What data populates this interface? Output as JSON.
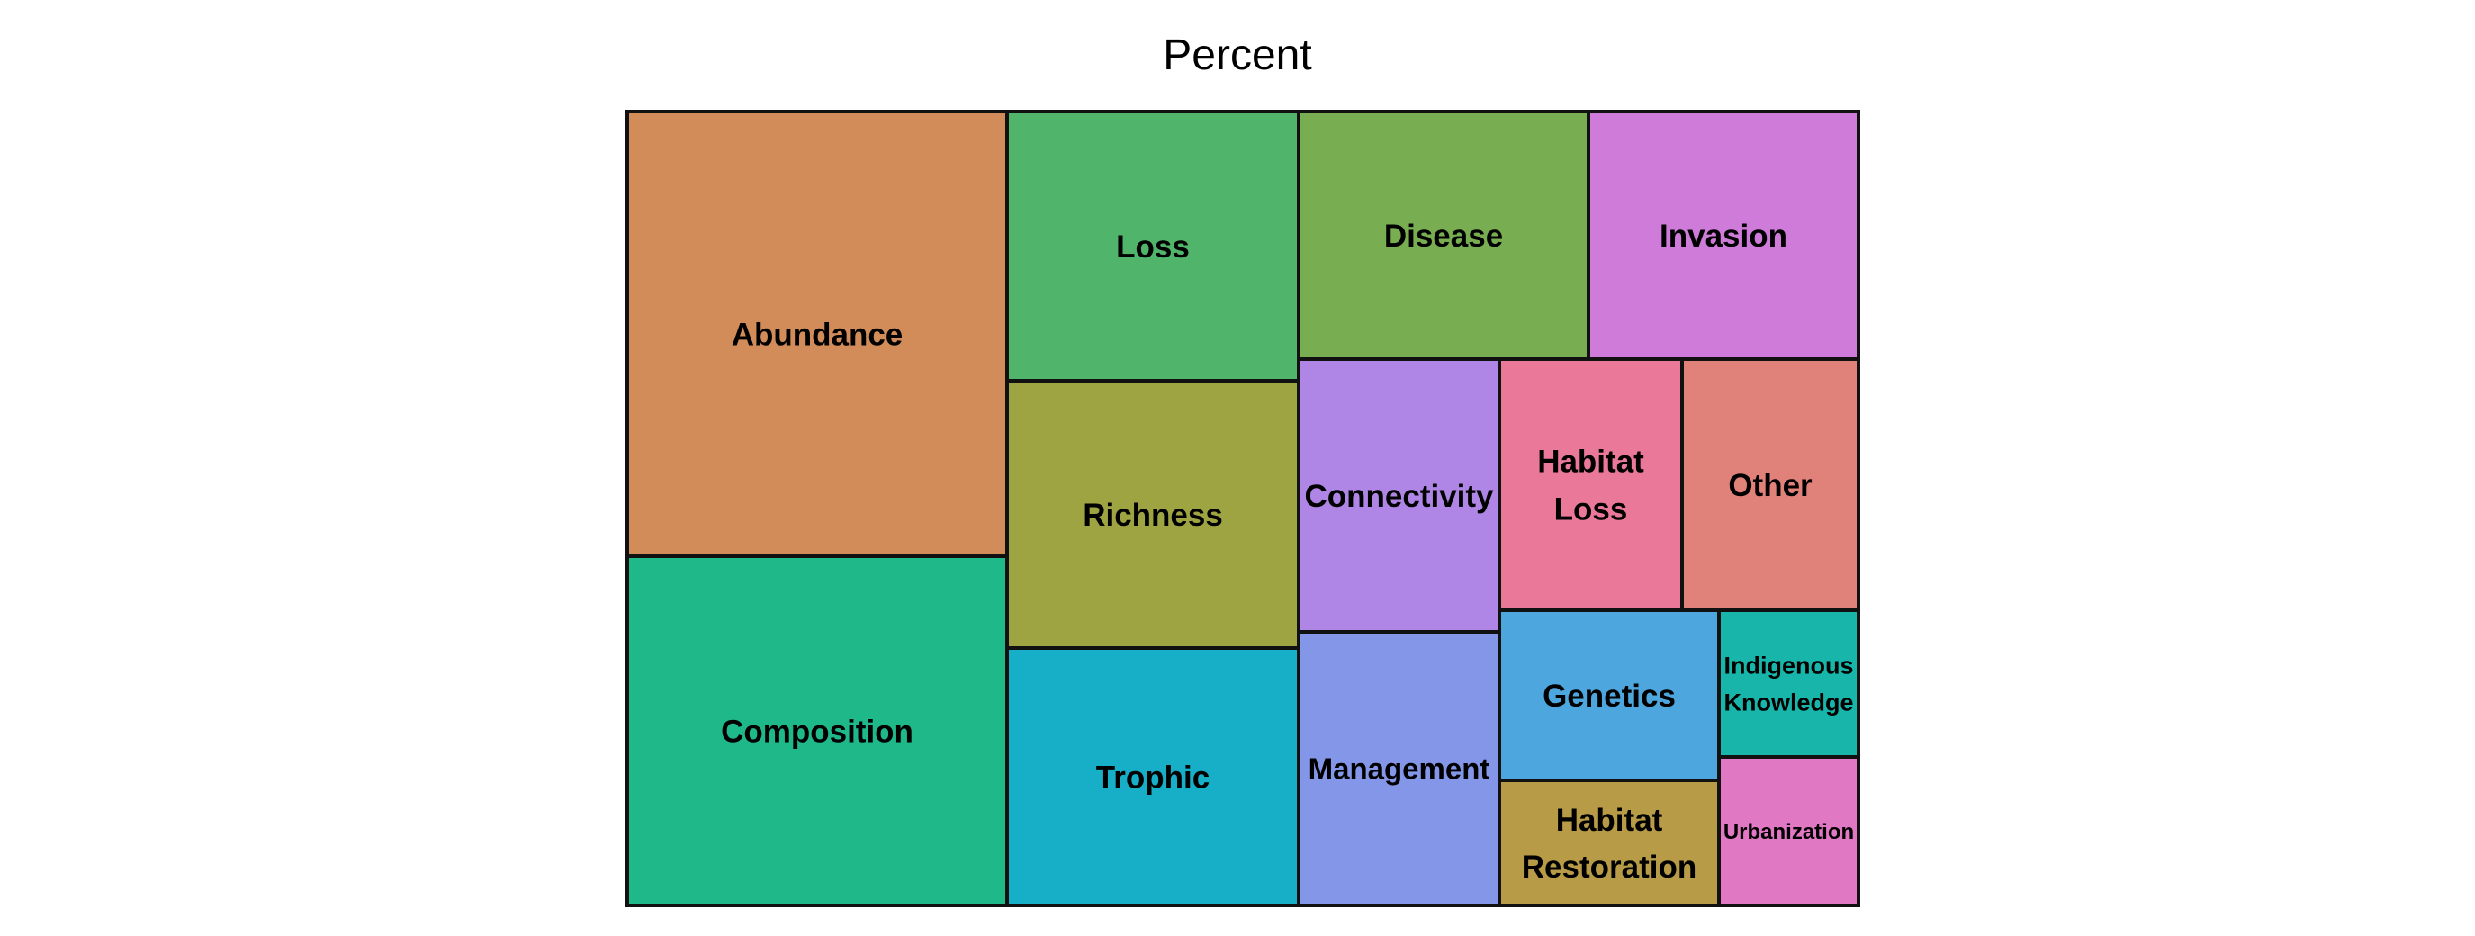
{
  "chart_data": {
    "type": "treemap",
    "title": "Percent",
    "tiles": [
      {
        "name": "Abundance",
        "lines": [
          "Abundance"
        ],
        "color": "#D18C59"
      },
      {
        "name": "Composition",
        "lines": [
          "Composition"
        ],
        "color": "#1FB889"
      },
      {
        "name": "Loss",
        "lines": [
          "Loss"
        ],
        "color": "#50B56A"
      },
      {
        "name": "Richness",
        "lines": [
          "Richness"
        ],
        "color": "#9EA441"
      },
      {
        "name": "Trophic",
        "lines": [
          "Trophic"
        ],
        "color": "#17AEC8"
      },
      {
        "name": "Disease",
        "lines": [
          "Disease"
        ],
        "color": "#78AE51"
      },
      {
        "name": "Invasion",
        "lines": [
          "Invasion"
        ],
        "color": "#CF7BD9"
      },
      {
        "name": "Connectivity",
        "lines": [
          "Connectivity"
        ],
        "color": "#AF86E6"
      },
      {
        "name": "Habitat Loss",
        "lines": [
          "Habitat",
          "Loss"
        ],
        "color": "#E97899"
      },
      {
        "name": "Other",
        "lines": [
          "Other"
        ],
        "color": "#E0817A"
      },
      {
        "name": "Management",
        "lines": [
          "Management"
        ],
        "color": "#8396E8"
      },
      {
        "name": "Genetics",
        "lines": [
          "Genetics"
        ],
        "color": "#4EA6DE"
      },
      {
        "name": "Indigenous Knowledge",
        "lines": [
          "Indigenous",
          "Knowledge"
        ],
        "color": "#18B6AA"
      },
      {
        "name": "Habitat Restoration",
        "lines": [
          "Habitat",
          "Restoration"
        ],
        "color": "#B89B47"
      },
      {
        "name": "Urbanization",
        "lines": [
          "Urbanization"
        ],
        "color": "#E178C4"
      }
    ]
  }
}
